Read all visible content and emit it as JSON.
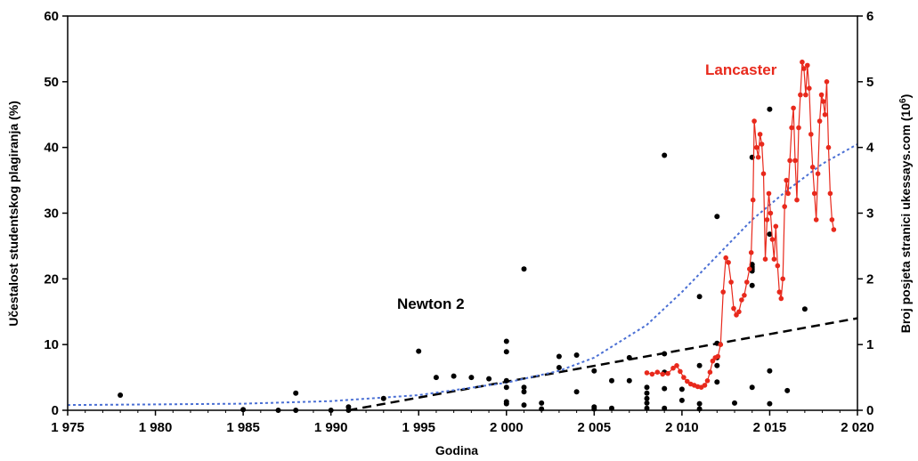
{
  "chart_data": {
    "type": "scatter",
    "xlabel": "Godina",
    "ylabel_left": "Učestalost studentskog plagiranja (%)",
    "ylabel_right_base": "Broj posjeta stranici ukessays.com (10",
    "ylabel_right_exp": "6",
    "ylabel_right_close": ")",
    "xlim": [
      1975,
      2020
    ],
    "ylim_left": [
      0,
      60
    ],
    "ylim_right": [
      0,
      6
    ],
    "x_ticks": [
      1975,
      1980,
      1985,
      1990,
      1995,
      2000,
      2005,
      2010,
      2015,
      2020
    ],
    "x_tick_labels": [
      "1 975",
      "1 980",
      "1 985",
      "1 990",
      "1 995",
      "2 000",
      "2 005",
      "2 010",
      "2 015",
      "2 020"
    ],
    "y_left_ticks": [
      0,
      10,
      20,
      30,
      40,
      50,
      60
    ],
    "y_left_tick_labels": [
      "0",
      "10",
      "20",
      "30",
      "40",
      "50",
      "60"
    ],
    "y_right_ticks": [
      0,
      1,
      2,
      3,
      4,
      5,
      6
    ],
    "y_right_tick_labels": [
      "0",
      "1",
      "2",
      "3",
      "4",
      "5",
      "6"
    ],
    "grid": false,
    "annotations": [
      {
        "text": "Lancaster",
        "x": 2011.8,
        "y": 52,
        "color": "#e8291c"
      },
      {
        "text": "Newton 2",
        "x": 1997.5,
        "y": 16.2,
        "color": "#000000"
      }
    ],
    "series": [
      {
        "kind": "scatter",
        "axis": "left",
        "color": "#000000",
        "points": [
          [
            1978,
            2.3
          ],
          [
            1985,
            0.1
          ],
          [
            1987,
            0
          ],
          [
            1988,
            2.6
          ],
          [
            1988,
            0
          ],
          [
            1990,
            0
          ],
          [
            1991,
            0.5
          ],
          [
            1991,
            0
          ],
          [
            1993,
            1.8
          ],
          [
            1995,
            9
          ],
          [
            1996,
            5
          ],
          [
            1997,
            5.2
          ],
          [
            1998,
            5
          ],
          [
            1999,
            4.8
          ],
          [
            2000,
            10.5
          ],
          [
            2000,
            8.9
          ],
          [
            2000,
            4.5
          ],
          [
            2000,
            3.5
          ],
          [
            2000,
            1.3
          ],
          [
            2000,
            1
          ],
          [
            2001,
            21.5
          ],
          [
            2001,
            3.5
          ],
          [
            2001,
            2.8
          ],
          [
            2001,
            0.8
          ],
          [
            2002,
            1.1
          ],
          [
            2002,
            0.2
          ],
          [
            2003,
            8.2
          ],
          [
            2003,
            6.5
          ],
          [
            2004,
            8.4
          ],
          [
            2004,
            2.8
          ],
          [
            2005,
            6
          ],
          [
            2005,
            0.5
          ],
          [
            2005,
            0.2
          ],
          [
            2006,
            4.5
          ],
          [
            2006,
            0.3
          ],
          [
            2007,
            8
          ],
          [
            2007,
            4.5
          ],
          [
            2008,
            3.5
          ],
          [
            2008,
            2.6
          ],
          [
            2008,
            1.8
          ],
          [
            2008,
            1.1
          ],
          [
            2008,
            0.3
          ],
          [
            2009,
            38.8
          ],
          [
            2009,
            8.6
          ],
          [
            2009,
            5.8
          ],
          [
            2009,
            3.3
          ],
          [
            2009,
            0.3
          ],
          [
            2010,
            3.2
          ],
          [
            2010,
            1.5
          ],
          [
            2011,
            17.3
          ],
          [
            2011,
            6.8
          ],
          [
            2011,
            1
          ],
          [
            2011,
            0.2
          ],
          [
            2012,
            29.5
          ],
          [
            2012,
            10.2
          ],
          [
            2012,
            8
          ],
          [
            2012,
            6.8
          ],
          [
            2012,
            4.3
          ],
          [
            2013,
            1.1
          ],
          [
            2014,
            38.5
          ],
          [
            2014,
            22.2
          ],
          [
            2014,
            21.8
          ],
          [
            2014,
            21.5
          ],
          [
            2014,
            21.2
          ],
          [
            2014,
            19
          ],
          [
            2014,
            3.5
          ],
          [
            2015,
            45.8
          ],
          [
            2015,
            26.8
          ],
          [
            2015,
            6
          ],
          [
            2015,
            1
          ],
          [
            2016,
            3
          ],
          [
            2017,
            15.4
          ]
        ]
      },
      {
        "kind": "line-markers",
        "axis": "right",
        "name": "Lancaster",
        "color": "#e8291c",
        "points": [
          [
            2008.0,
            0.57
          ],
          [
            2008.3,
            0.55
          ],
          [
            2008.6,
            0.58
          ],
          [
            2008.9,
            0.55
          ],
          [
            2009.2,
            0.56
          ],
          [
            2009.5,
            0.64
          ],
          [
            2009.7,
            0.68
          ],
          [
            2009.9,
            0.59
          ],
          [
            2010.1,
            0.5
          ],
          [
            2010.3,
            0.44
          ],
          [
            2010.5,
            0.4
          ],
          [
            2010.7,
            0.38
          ],
          [
            2010.9,
            0.36
          ],
          [
            2011.1,
            0.35
          ],
          [
            2011.3,
            0.38
          ],
          [
            2011.45,
            0.45
          ],
          [
            2011.6,
            0.58
          ],
          [
            2011.75,
            0.75
          ],
          [
            2011.9,
            0.8
          ],
          [
            2012.05,
            0.82
          ],
          [
            2012.2,
            1.0
          ],
          [
            2012.35,
            1.8
          ],
          [
            2012.5,
            2.32
          ],
          [
            2012.65,
            2.25
          ],
          [
            2012.8,
            1.95
          ],
          [
            2012.95,
            1.55
          ],
          [
            2013.1,
            1.45
          ],
          [
            2013.25,
            1.5
          ],
          [
            2013.4,
            1.68
          ],
          [
            2013.55,
            1.75
          ],
          [
            2013.7,
            1.95
          ],
          [
            2013.85,
            2.15
          ],
          [
            2013.95,
            2.4
          ],
          [
            2014.05,
            3.2
          ],
          [
            2014.12,
            4.4
          ],
          [
            2014.25,
            4.0
          ],
          [
            2014.35,
            3.85
          ],
          [
            2014.45,
            4.2
          ],
          [
            2014.55,
            4.05
          ],
          [
            2014.65,
            3.6
          ],
          [
            2014.75,
            2.3
          ],
          [
            2014.85,
            2.9
          ],
          [
            2014.95,
            3.3
          ],
          [
            2015.05,
            3.0
          ],
          [
            2015.15,
            2.6
          ],
          [
            2015.25,
            2.3
          ],
          [
            2015.35,
            2.8
          ],
          [
            2015.45,
            2.2
          ],
          [
            2015.55,
            1.8
          ],
          [
            2015.65,
            1.7
          ],
          [
            2015.75,
            2.0
          ],
          [
            2015.85,
            3.1
          ],
          [
            2015.95,
            3.5
          ],
          [
            2016.05,
            3.3
          ],
          [
            2016.15,
            3.8
          ],
          [
            2016.25,
            4.3
          ],
          [
            2016.35,
            4.6
          ],
          [
            2016.45,
            3.8
          ],
          [
            2016.55,
            3.2
          ],
          [
            2016.65,
            4.3
          ],
          [
            2016.75,
            4.8
          ],
          [
            2016.85,
            5.3
          ],
          [
            2016.95,
            5.2
          ],
          [
            2017.05,
            4.8
          ],
          [
            2017.15,
            5.25
          ],
          [
            2017.25,
            4.9
          ],
          [
            2017.35,
            4.2
          ],
          [
            2017.45,
            3.7
          ],
          [
            2017.55,
            3.3
          ],
          [
            2017.65,
            2.9
          ],
          [
            2017.75,
            3.6
          ],
          [
            2017.85,
            4.4
          ],
          [
            2017.95,
            4.8
          ],
          [
            2018.05,
            4.7
          ],
          [
            2018.15,
            4.5
          ],
          [
            2018.25,
            5.0
          ],
          [
            2018.35,
            4.0
          ],
          [
            2018.45,
            3.3
          ],
          [
            2018.55,
            2.9
          ],
          [
            2018.65,
            2.75
          ]
        ]
      },
      {
        "kind": "trend-dashed",
        "axis": "left",
        "color": "#000000",
        "points": [
          [
            1991,
            0
          ],
          [
            2020,
            14
          ]
        ]
      },
      {
        "kind": "trend-dotted",
        "axis": "right",
        "color": "#4a6fd4",
        "points": [
          [
            1975,
            0.08
          ],
          [
            1980,
            0.09
          ],
          [
            1985,
            0.1
          ],
          [
            1990,
            0.14
          ],
          [
            1995,
            0.23
          ],
          [
            2000,
            0.42
          ],
          [
            2003,
            0.6
          ],
          [
            2005,
            0.8
          ],
          [
            2008,
            1.3
          ],
          [
            2010,
            1.8
          ],
          [
            2012,
            2.35
          ],
          [
            2014,
            2.9
          ],
          [
            2016,
            3.35
          ],
          [
            2018,
            3.75
          ],
          [
            2020,
            4.05
          ]
        ]
      }
    ]
  }
}
